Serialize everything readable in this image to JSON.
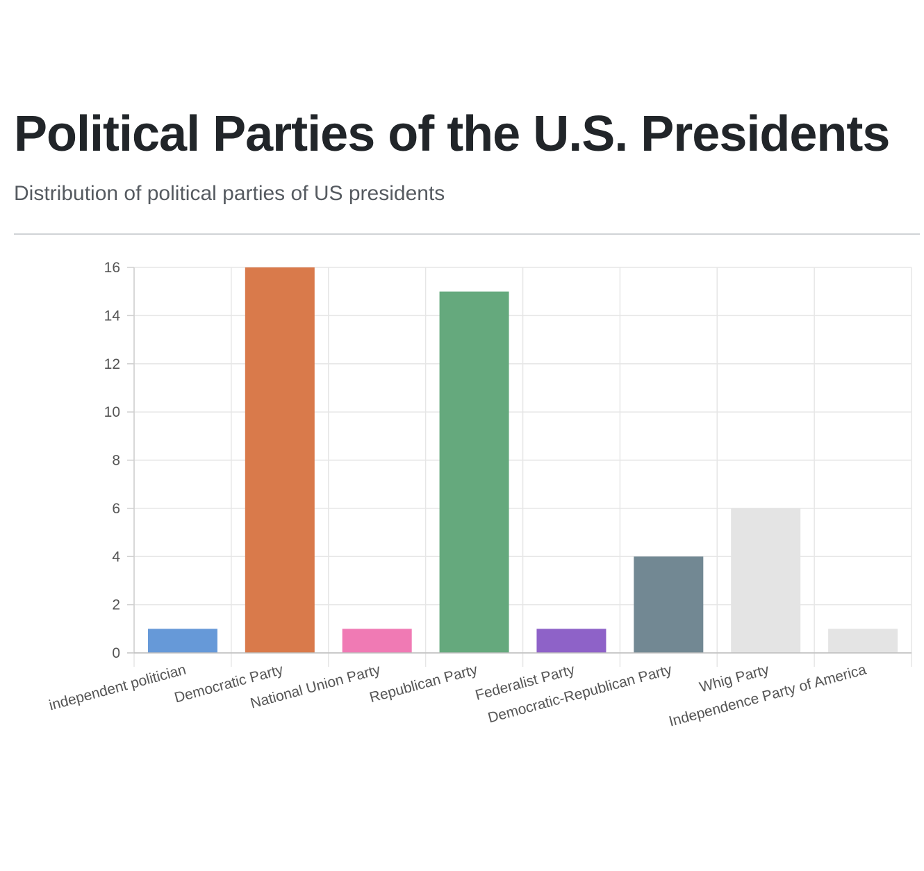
{
  "header": {
    "title": "Political Parties of the U.S. Presidents",
    "subtitle": "Distribution of political parties of US presidents"
  },
  "chart_data": {
    "type": "bar",
    "categories": [
      "independent politician",
      "Democratic Party",
      "National Union Party",
      "Republican Party",
      "Federalist Party",
      "Democratic-Republican Party",
      "Whig Party",
      "Independence Party of America"
    ],
    "values": [
      1,
      16,
      1,
      15,
      1,
      4,
      6,
      1
    ],
    "colors": [
      "#6699d8",
      "#d97a4b",
      "#f07ab4",
      "#65a97d",
      "#8e62c8",
      "#728893",
      "#e4e4e4",
      "#e4e4e4"
    ],
    "title": "",
    "xlabel": "",
    "ylabel": "",
    "ylim": [
      0,
      16
    ],
    "yticks": [
      0,
      2,
      4,
      6,
      8,
      10,
      12,
      14,
      16
    ],
    "grid": true,
    "legend": "none"
  }
}
